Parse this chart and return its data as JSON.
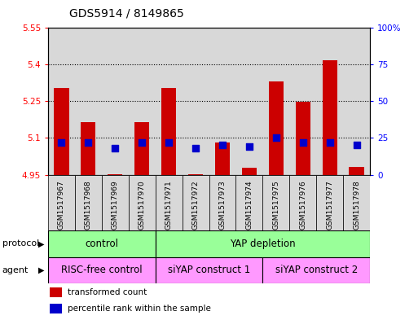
{
  "title": "GDS5914 / 8149865",
  "samples": [
    "GSM1517967",
    "GSM1517968",
    "GSM1517969",
    "GSM1517970",
    "GSM1517971",
    "GSM1517972",
    "GSM1517973",
    "GSM1517974",
    "GSM1517975",
    "GSM1517976",
    "GSM1517977",
    "GSM1517978"
  ],
  "transformed_counts": [
    5.305,
    5.165,
    4.953,
    5.165,
    5.305,
    4.952,
    5.083,
    4.978,
    5.33,
    5.248,
    5.415,
    4.983
  ],
  "percentile_ranks": [
    22,
    22,
    18,
    22,
    22,
    18,
    20,
    19,
    25,
    22,
    22,
    20
  ],
  "ylim_left": [
    4.95,
    5.55
  ],
  "ylim_right": [
    0,
    100
  ],
  "yticks_left": [
    4.95,
    5.1,
    5.25,
    5.4,
    5.55
  ],
  "yticks_right": [
    0,
    25,
    50,
    75,
    100
  ],
  "ytick_labels_left": [
    "4.95",
    "5.1",
    "5.25",
    "5.4",
    "5.55"
  ],
  "ytick_labels_right": [
    "0",
    "25",
    "50",
    "75",
    "100%"
  ],
  "bar_bottom": 4.95,
  "bar_color": "#cc0000",
  "dot_color": "#0000cc",
  "protocol_labels": [
    "control",
    "YAP depletion"
  ],
  "protocol_color": "#99ff99",
  "agent_labels": [
    "RISC-free control",
    "siYAP construct 1",
    "siYAP construct 2"
  ],
  "agent_color": "#ff99ff",
  "legend_items": [
    "transformed count",
    "percentile rank within the sample"
  ],
  "legend_colors": [
    "#cc0000",
    "#0000cc"
  ],
  "col_bg": "#d8d8d8",
  "plot_bg": "#ffffff",
  "bar_width": 0.55,
  "dot_size": 28,
  "title_fontsize": 10,
  "tick_fontsize": 7.5,
  "xtick_fontsize": 6.5,
  "label_fontsize": 8,
  "protocol_fontsize": 8.5,
  "agent_fontsize": 8.5
}
